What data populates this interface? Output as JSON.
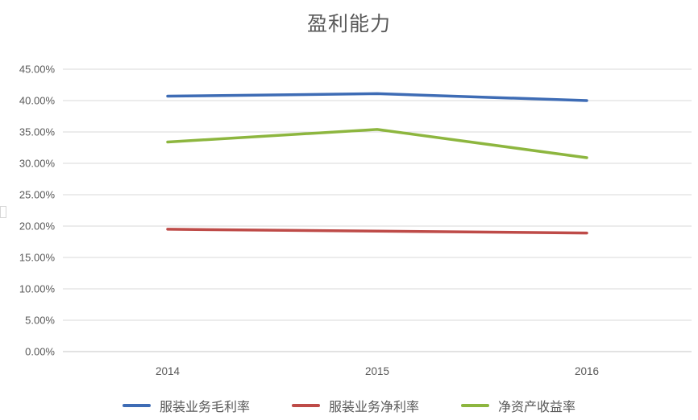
{
  "chart_data": {
    "type": "line",
    "title": "盈利能力",
    "categories": [
      "2014",
      "2015",
      "2016"
    ],
    "series": [
      {
        "name": "服装业务毛利率",
        "color": "#3E6CB5",
        "values": [
          40.7,
          41.1,
          40.0
        ]
      },
      {
        "name": "服装业务净利率",
        "color": "#BE4B48",
        "values": [
          19.5,
          19.2,
          18.9
        ]
      },
      {
        "name": "净资产收益率",
        "color": "#8DB63F",
        "values": [
          33.4,
          35.4,
          30.9
        ]
      }
    ],
    "value_unit": "percent",
    "ylim": [
      0,
      45
    ],
    "y_step": 5,
    "y_tick_labels": [
      "0.00%",
      "5.00%",
      "10.00%",
      "15.00%",
      "20.00%",
      "25.00%",
      "30.00%",
      "35.00%",
      "40.00%",
      "45.00%"
    ],
    "xlabel": "",
    "ylabel": "",
    "grid": true,
    "legend_position": "bottom",
    "colors": {
      "gridline": "#D9D9D9",
      "axis_line": "#C6C6C6",
      "tick_text": "#595959",
      "title_text": "#595959",
      "legend_text": "#595959",
      "background": "#FFFFFF"
    }
  }
}
